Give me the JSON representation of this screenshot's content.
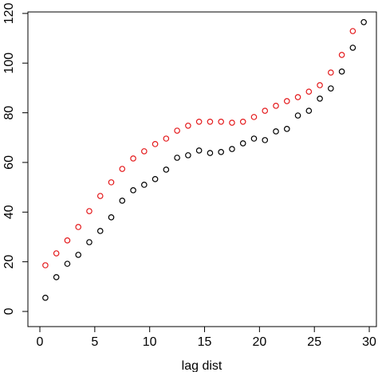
{
  "chart_data": {
    "type": "scatter",
    "x_label": "lag dist",
    "x": [
      0.5,
      1.5,
      2.5,
      3.5,
      4.5,
      5.5,
      6.5,
      7.5,
      8.5,
      9.5,
      10.5,
      11.5,
      12.5,
      13.5,
      14.5,
      15.5,
      16.5,
      17.5,
      18.5,
      19.5,
      20.5,
      21.5,
      22.5,
      23.5,
      24.5,
      25.5,
      26.5,
      27.5,
      28.5,
      29.5
    ],
    "series": [
      {
        "color": "#000000",
        "values": [
          5.5,
          13.8,
          19.2,
          22.8,
          27.9,
          32.4,
          37.9,
          44.6,
          48.8,
          51.0,
          53.3,
          57.1,
          61.9,
          62.9,
          64.8,
          63.8,
          64.2,
          65.4,
          67.7,
          69.6,
          69.0,
          72.5,
          73.5,
          78.9,
          80.8,
          85.7,
          89.8,
          96.6,
          106.2,
          116.5
        ]
      },
      {
        "color": "#e41a1c",
        "values": [
          18.6,
          23.4,
          28.6,
          34.0,
          40.4,
          46.5,
          52.0,
          57.4,
          61.6,
          64.5,
          67.4,
          69.6,
          72.8,
          74.8,
          76.4,
          76.4,
          76.4,
          76.0,
          76.4,
          78.3,
          80.8,
          82.8,
          84.7,
          86.3,
          88.5,
          91.1,
          96.2,
          103.3,
          112.9,
          null
        ]
      }
    ],
    "xlim": [
      -1.09,
      30.65
    ],
    "ylim": [
      -6.1,
      120.6
    ],
    "xticks": [
      0,
      5,
      10,
      15,
      20,
      25,
      30
    ],
    "yticks": [
      0,
      20,
      40,
      60,
      80,
      100,
      120
    ]
  }
}
